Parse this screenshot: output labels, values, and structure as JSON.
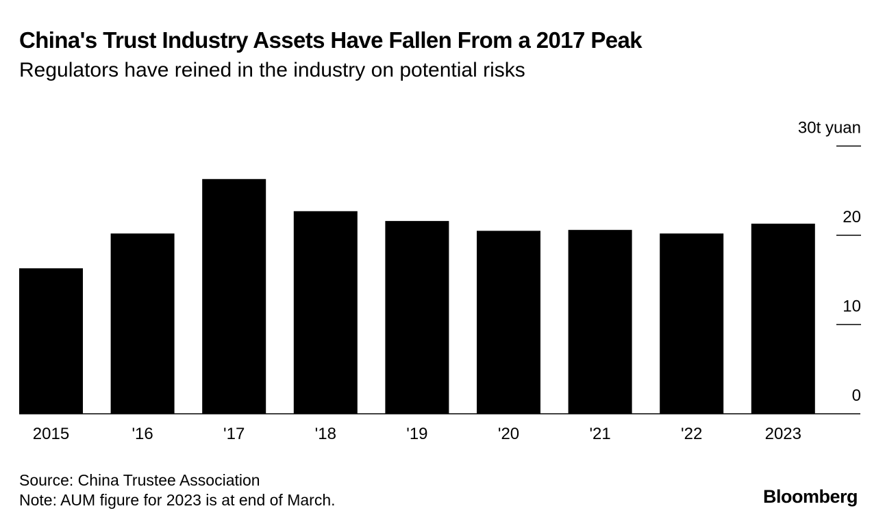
{
  "header": {
    "title": "China's Trust Industry Assets Have Fallen From a 2017 Peak",
    "subtitle": "Regulators have reined in the industry on potential risks"
  },
  "footer": {
    "source": "Source: China Trustee Association",
    "note": "Note: AUM figure for 2023 is at end of March.",
    "brand": "Bloomberg"
  },
  "colors": {
    "bar": "#000000",
    "background": "#ffffff",
    "text": "#000000"
  },
  "chart_data": {
    "type": "bar",
    "title": "China's Trust Industry Assets Have Fallen From a 2017 Peak",
    "subtitle": "Regulators have reined in the industry on potential risks",
    "xlabel": "",
    "ylabel": "t yuan",
    "categories": [
      "2015",
      "'16",
      "'17",
      "'18",
      "'19",
      "'20",
      "'21",
      "'22",
      "2023"
    ],
    "values": [
      16.3,
      20.2,
      26.3,
      22.7,
      21.6,
      20.5,
      20.6,
      20.2,
      21.3
    ],
    "ylim": [
      0,
      30
    ],
    "yticks": [
      0,
      10,
      20,
      30
    ],
    "ytick_labels": [
      "0",
      "10",
      "20",
      "30t yuan"
    ],
    "grid": false,
    "y_axis_position": "right",
    "legend": "none"
  }
}
